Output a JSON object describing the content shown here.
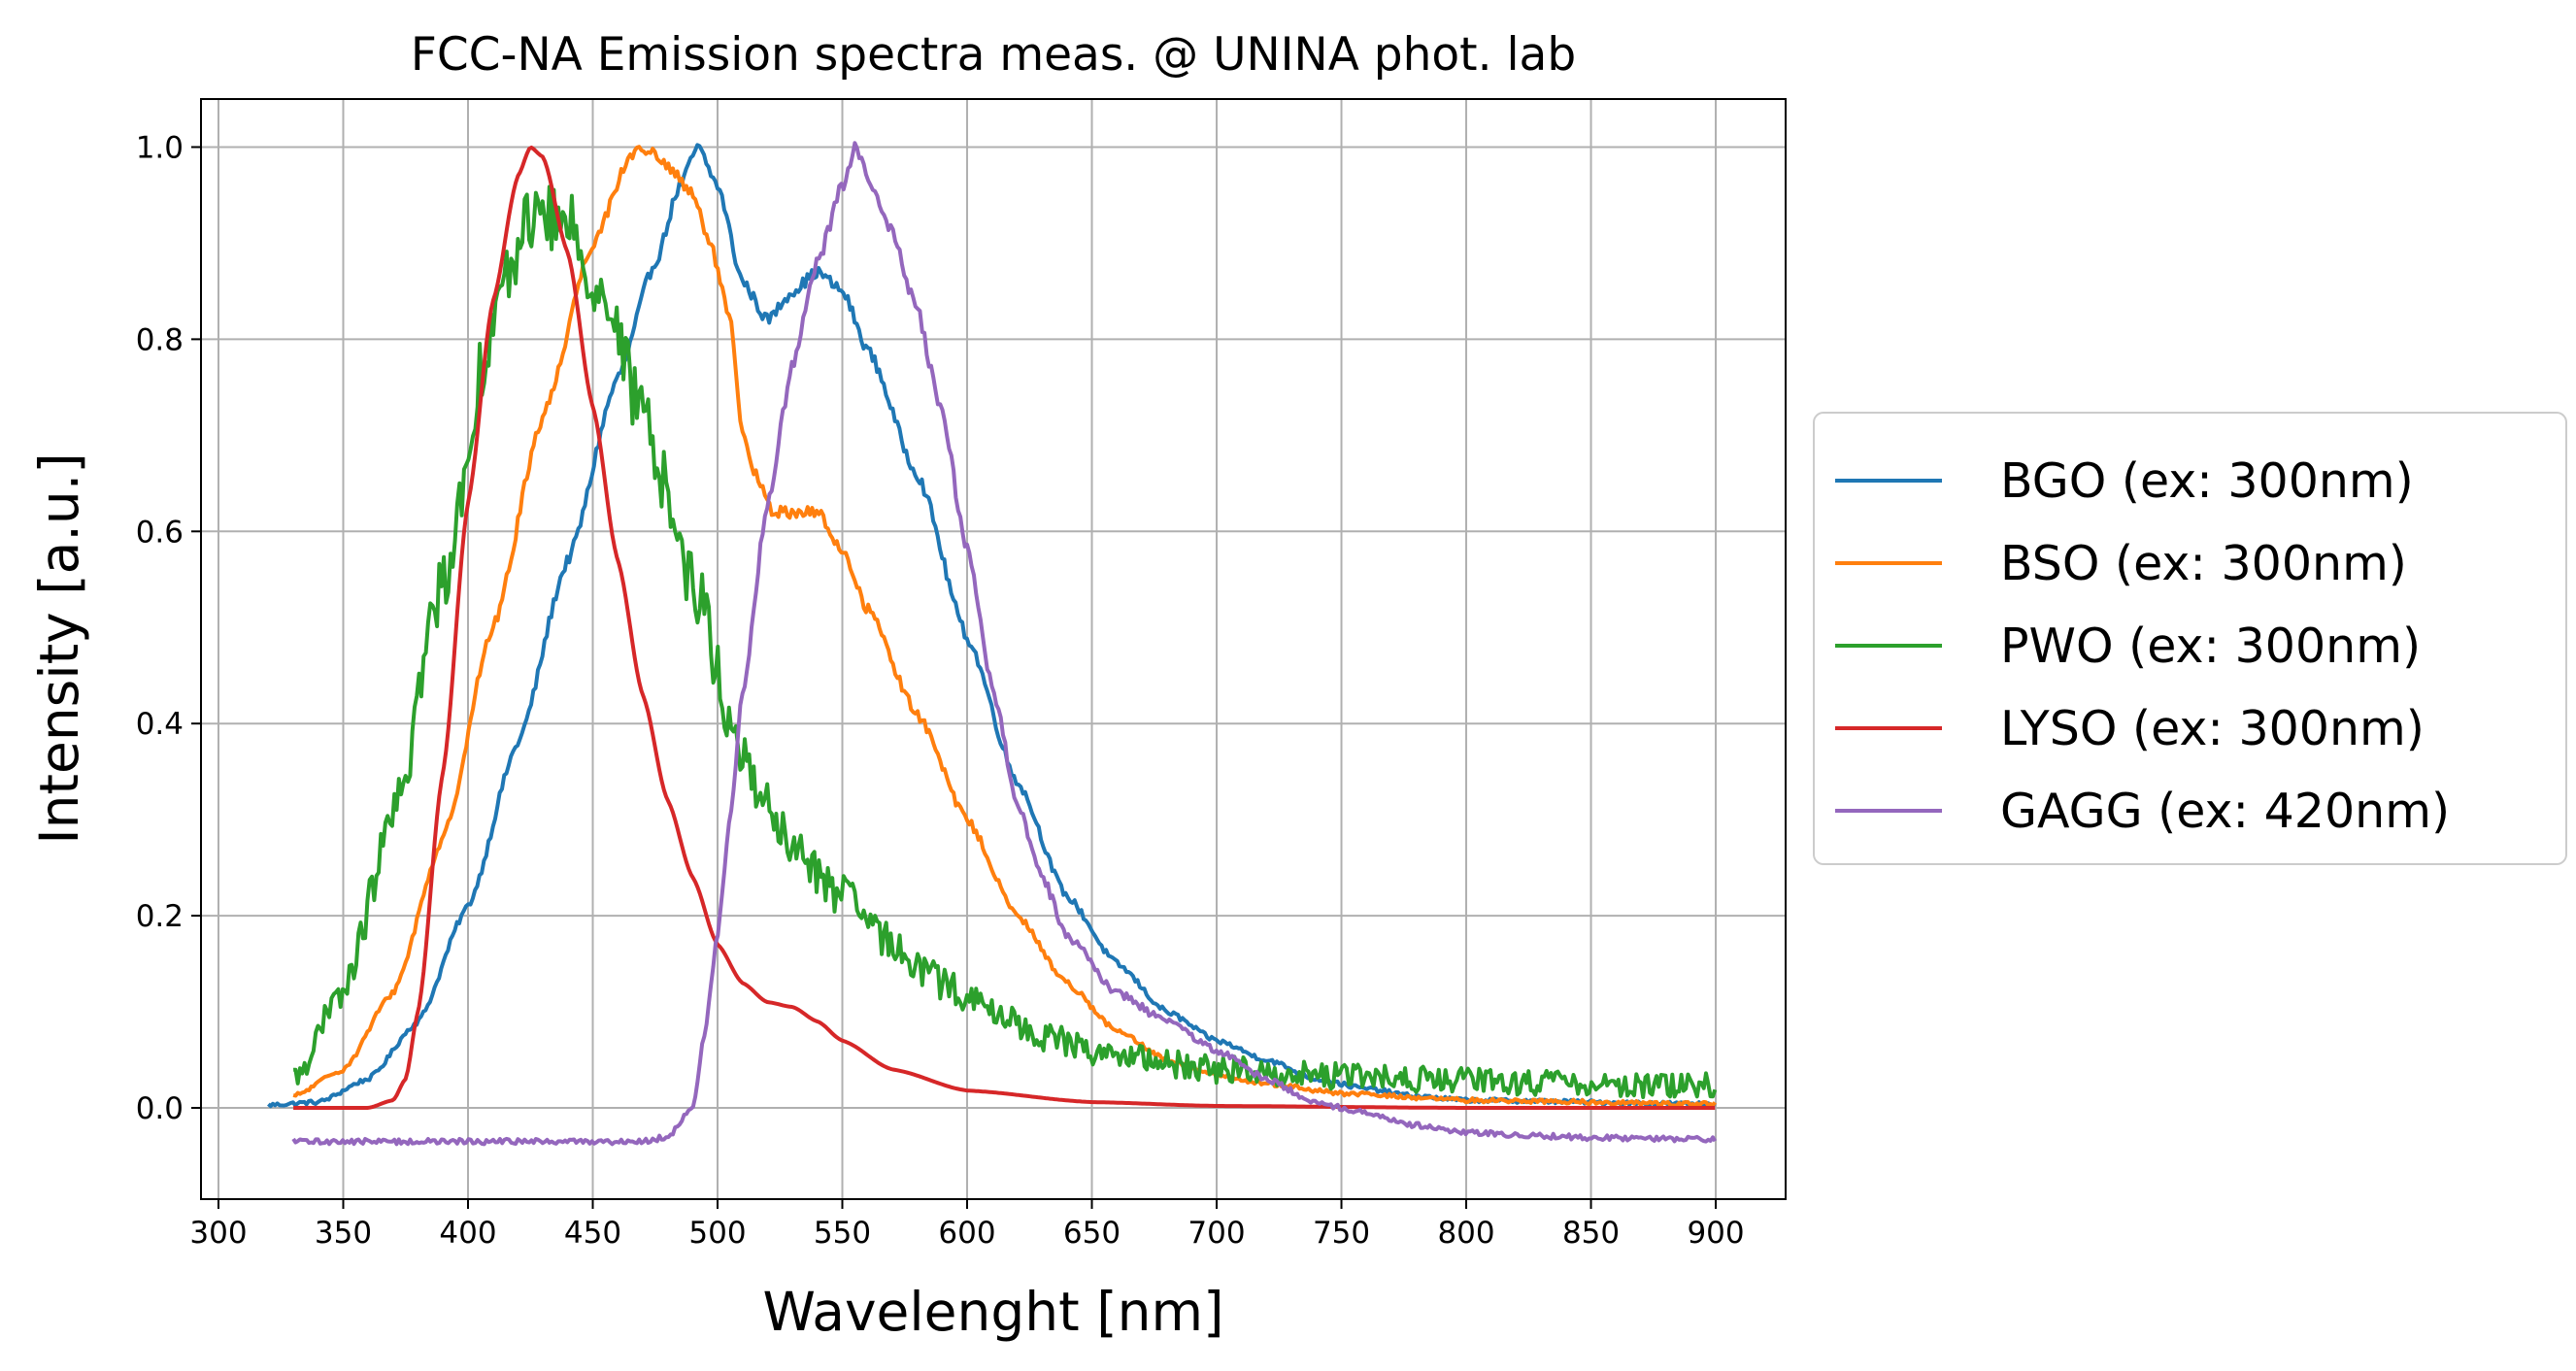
{
  "chart_data": {
    "type": "line",
    "title": "FCC-NA Emission spectra meas. @ UNINA phot. lab",
    "xlabel": "Wavelenght [nm]",
    "ylabel": "Intensity [a.u.]",
    "xlim": [
      293,
      928
    ],
    "ylim": [
      -0.095,
      1.05
    ],
    "xticks": [
      "300",
      "350",
      "400",
      "450",
      "500",
      "550",
      "600",
      "650",
      "700",
      "750",
      "800",
      "850",
      "900"
    ],
    "yticks": [
      "0.0",
      "0.2",
      "0.4",
      "0.6",
      "0.8",
      "1.0"
    ],
    "grid": true,
    "legend_position": "center-right outside",
    "series": [
      {
        "name": "BGO (ex: 300nm)",
        "color": "#1f77b4",
        "noise": 0.006,
        "points": [
          [
            320,
            0.003
          ],
          [
            340,
            0.006
          ],
          [
            360,
            0.03
          ],
          [
            380,
            0.09
          ],
          [
            400,
            0.21
          ],
          [
            420,
            0.38
          ],
          [
            440,
            0.57
          ],
          [
            460,
            0.76
          ],
          [
            475,
            0.88
          ],
          [
            485,
            0.96
          ],
          [
            492,
            1.0
          ],
          [
            500,
            0.96
          ],
          [
            510,
            0.86
          ],
          [
            520,
            0.82
          ],
          [
            530,
            0.85
          ],
          [
            540,
            0.87
          ],
          [
            550,
            0.85
          ],
          [
            560,
            0.79
          ],
          [
            580,
            0.66
          ],
          [
            600,
            0.49
          ],
          [
            620,
            0.34
          ],
          [
            640,
            0.22
          ],
          [
            660,
            0.15
          ],
          [
            680,
            0.1
          ],
          [
            700,
            0.07
          ],
          [
            720,
            0.05
          ],
          [
            740,
            0.03
          ],
          [
            760,
            0.02
          ],
          [
            780,
            0.012
          ],
          [
            800,
            0.008
          ],
          [
            900,
            0.004
          ]
        ]
      },
      {
        "name": "BSO (ex: 300nm)",
        "color": "#ff7f0e",
        "noise": 0.006,
        "points": [
          [
            330,
            0.012
          ],
          [
            350,
            0.04
          ],
          [
            370,
            0.12
          ],
          [
            390,
            0.28
          ],
          [
            410,
            0.5
          ],
          [
            430,
            0.72
          ],
          [
            450,
            0.9
          ],
          [
            465,
            0.99
          ],
          [
            470,
            1.0
          ],
          [
            480,
            0.98
          ],
          [
            490,
            0.95
          ],
          [
            497,
            0.9
          ],
          [
            505,
            0.82
          ],
          [
            510,
            0.7
          ],
          [
            515,
            0.66
          ],
          [
            522,
            0.62
          ],
          [
            530,
            0.62
          ],
          [
            540,
            0.62
          ],
          [
            550,
            0.58
          ],
          [
            560,
            0.52
          ],
          [
            580,
            0.41
          ],
          [
            600,
            0.3
          ],
          [
            620,
            0.2
          ],
          [
            640,
            0.13
          ],
          [
            660,
            0.08
          ],
          [
            680,
            0.05
          ],
          [
            700,
            0.035
          ],
          [
            720,
            0.025
          ],
          [
            750,
            0.015
          ],
          [
            800,
            0.008
          ],
          [
            900,
            0.004
          ]
        ]
      },
      {
        "name": "PWO (ex: 300nm)",
        "color": "#2ca02c",
        "noise": 0.035,
        "points": [
          [
            330,
            0.03
          ],
          [
            350,
            0.12
          ],
          [
            370,
            0.3
          ],
          [
            390,
            0.55
          ],
          [
            410,
            0.82
          ],
          [
            425,
            0.93
          ],
          [
            440,
            0.92
          ],
          [
            455,
            0.84
          ],
          [
            470,
            0.72
          ],
          [
            490,
            0.55
          ],
          [
            510,
            0.36
          ],
          [
            530,
            0.27
          ],
          [
            550,
            0.22
          ],
          [
            570,
            0.17
          ],
          [
            590,
            0.13
          ],
          [
            610,
            0.1
          ],
          [
            630,
            0.075
          ],
          [
            650,
            0.06
          ],
          [
            670,
            0.05
          ],
          [
            700,
            0.04
          ],
          [
            750,
            0.033
          ],
          [
            800,
            0.028
          ],
          [
            850,
            0.025
          ],
          [
            900,
            0.023
          ]
        ]
      },
      {
        "name": "LYSO (ex: 300nm)",
        "color": "#d62728",
        "noise": 0,
        "points": [
          [
            330,
            0.0
          ],
          [
            360,
            0.0
          ],
          [
            370,
            0.008
          ],
          [
            375,
            0.03
          ],
          [
            380,
            0.1
          ],
          [
            390,
            0.35
          ],
          [
            400,
            0.63
          ],
          [
            410,
            0.84
          ],
          [
            420,
            0.97
          ],
          [
            425,
            1.0
          ],
          [
            430,
            0.99
          ],
          [
            440,
            0.89
          ],
          [
            450,
            0.73
          ],
          [
            460,
            0.57
          ],
          [
            470,
            0.43
          ],
          [
            480,
            0.32
          ],
          [
            490,
            0.24
          ],
          [
            500,
            0.17
          ],
          [
            510,
            0.13
          ],
          [
            520,
            0.11
          ],
          [
            530,
            0.105
          ],
          [
            540,
            0.09
          ],
          [
            550,
            0.07
          ],
          [
            570,
            0.04
          ],
          [
            600,
            0.018
          ],
          [
            650,
            0.006
          ],
          [
            700,
            0.002
          ],
          [
            800,
            0.0
          ],
          [
            900,
            0.0
          ]
        ]
      },
      {
        "name": "GAGG (ex: 420nm)",
        "color": "#9467bd",
        "noise": 0.008,
        "points": [
          [
            330,
            -0.035
          ],
          [
            400,
            -0.035
          ],
          [
            470,
            -0.035
          ],
          [
            480,
            -0.03
          ],
          [
            490,
            0.0
          ],
          [
            495,
            0.08
          ],
          [
            500,
            0.18
          ],
          [
            505,
            0.3
          ],
          [
            510,
            0.43
          ],
          [
            520,
            0.63
          ],
          [
            530,
            0.77
          ],
          [
            540,
            0.88
          ],
          [
            550,
            0.96
          ],
          [
            555,
            1.0
          ],
          [
            560,
            0.97
          ],
          [
            570,
            0.91
          ],
          [
            580,
            0.83
          ],
          [
            590,
            0.72
          ],
          [
            600,
            0.58
          ],
          [
            610,
            0.44
          ],
          [
            620,
            0.32
          ],
          [
            630,
            0.24
          ],
          [
            640,
            0.18
          ],
          [
            660,
            0.12
          ],
          [
            680,
            0.09
          ],
          [
            700,
            0.06
          ],
          [
            720,
            0.03
          ],
          [
            740,
            0.005
          ],
          [
            760,
            -0.005
          ],
          [
            780,
            -0.018
          ],
          [
            800,
            -0.026
          ],
          [
            850,
            -0.031
          ],
          [
            900,
            -0.033
          ]
        ]
      }
    ]
  }
}
